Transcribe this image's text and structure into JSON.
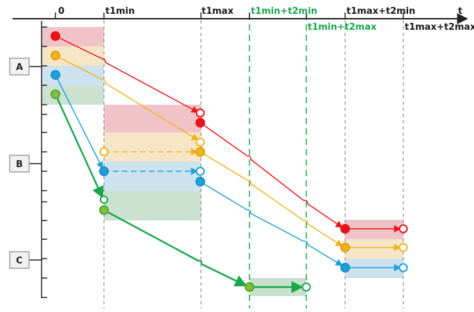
{
  "time_axis": {
    "axis_symbol": "t",
    "labels": {
      "zero": "0",
      "t1min": "t1min",
      "t1max": "t1max",
      "t1min_t2min": "t1min+t2min",
      "t1min_t2max": "t1min+t2max",
      "t1max_t2min": "t1max+t2min",
      "t1max_t2max": "t1max+t2max"
    }
  },
  "stages": {
    "a": "A",
    "b": "B",
    "c": "C"
  },
  "colors": {
    "red": "#e8141c",
    "yellow": "#f0b21e",
    "blue": "#1ea0dc",
    "green": "#7cc243",
    "green_dark": "#1aa64a",
    "axis": "#222222",
    "guide": "#777777",
    "box_fill": "#f2f2f2",
    "box_stroke": "#888888"
  }
}
